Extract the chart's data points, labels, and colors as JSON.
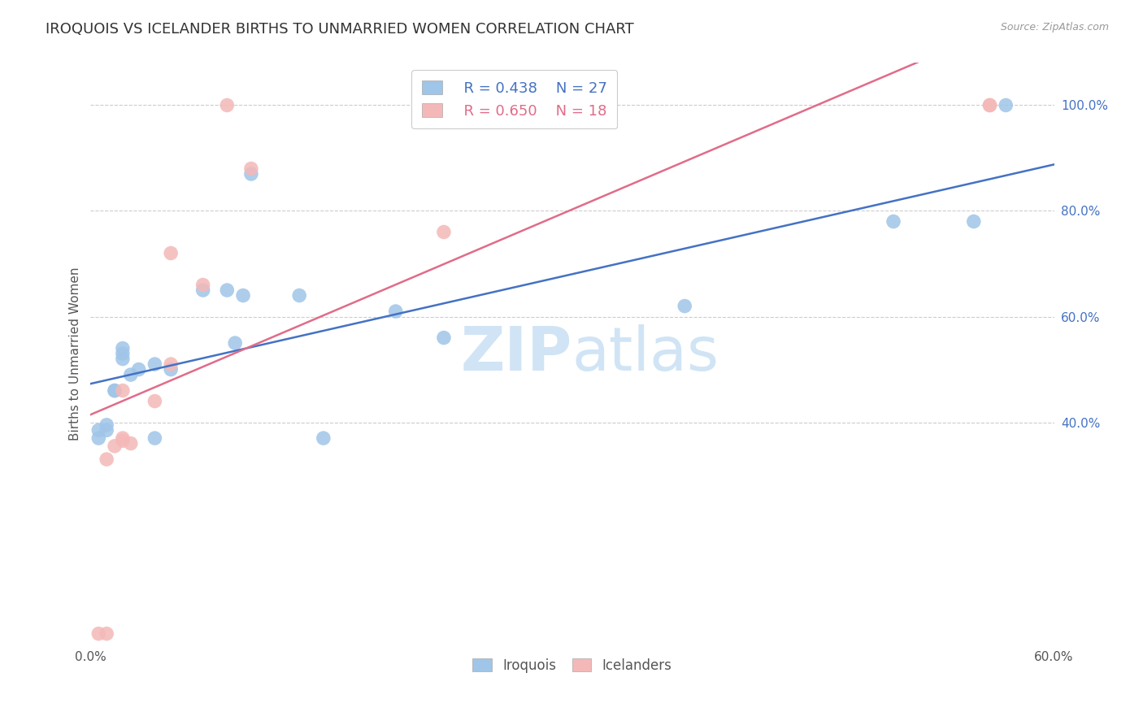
{
  "title": "IROQUOIS VS ICELANDER BIRTHS TO UNMARRIED WOMEN CORRELATION CHART",
  "source": "Source: ZipAtlas.com",
  "ylabel": "Births to Unmarried Women",
  "xlim": [
    0.0,
    0.6
  ],
  "ylim": [
    -0.02,
    1.08
  ],
  "xticks": [
    0.0,
    0.1,
    0.2,
    0.3,
    0.4,
    0.5,
    0.6
  ],
  "xticklabels": [
    "0.0%",
    "",
    "",
    "",
    "",
    "",
    "60.0%"
  ],
  "yticks": [
    0.4,
    0.6,
    0.8,
    1.0
  ],
  "yticklabels": [
    "40.0%",
    "60.0%",
    "80.0%",
    "100.0%"
  ],
  "legend_r": [
    "R = 0.438",
    "R = 0.650"
  ],
  "legend_n": [
    "N = 27",
    "N = 18"
  ],
  "blue_color": "#9fc5e8",
  "pink_color": "#f4b8b8",
  "blue_line_color": "#4472c4",
  "pink_line_color": "#e06c8a",
  "watermark_color": "#d0e4f5",
  "grid_color": "#cccccc",
  "background_color": "#ffffff",
  "title_fontsize": 13,
  "axis_label_fontsize": 11,
  "tick_fontsize": 11,
  "iroquois_x": [
    0.005,
    0.005,
    0.01,
    0.01,
    0.015,
    0.015,
    0.02,
    0.02,
    0.02,
    0.025,
    0.03,
    0.04,
    0.04,
    0.05,
    0.07,
    0.085,
    0.09,
    0.095,
    0.1,
    0.13,
    0.145,
    0.19,
    0.22,
    0.37,
    0.5,
    0.55,
    0.57
  ],
  "iroquois_y": [
    0.37,
    0.385,
    0.385,
    0.395,
    0.46,
    0.46,
    0.52,
    0.53,
    0.54,
    0.49,
    0.5,
    0.51,
    0.37,
    0.5,
    0.65,
    0.65,
    0.55,
    0.64,
    0.87,
    0.64,
    0.37,
    0.61,
    0.56,
    0.62,
    0.78,
    0.78,
    1.0
  ],
  "icelanders_x": [
    0.005,
    0.01,
    0.01,
    0.015,
    0.02,
    0.02,
    0.02,
    0.025,
    0.04,
    0.05,
    0.05,
    0.07,
    0.085,
    0.1,
    0.22,
    0.24,
    0.56,
    0.56
  ],
  "icelanders_y": [
    0.0,
    0.0,
    0.33,
    0.355,
    0.365,
    0.37,
    0.46,
    0.36,
    0.44,
    0.51,
    0.72,
    0.66,
    1.0,
    0.88,
    0.76,
    0.97,
    1.0,
    1.0
  ]
}
